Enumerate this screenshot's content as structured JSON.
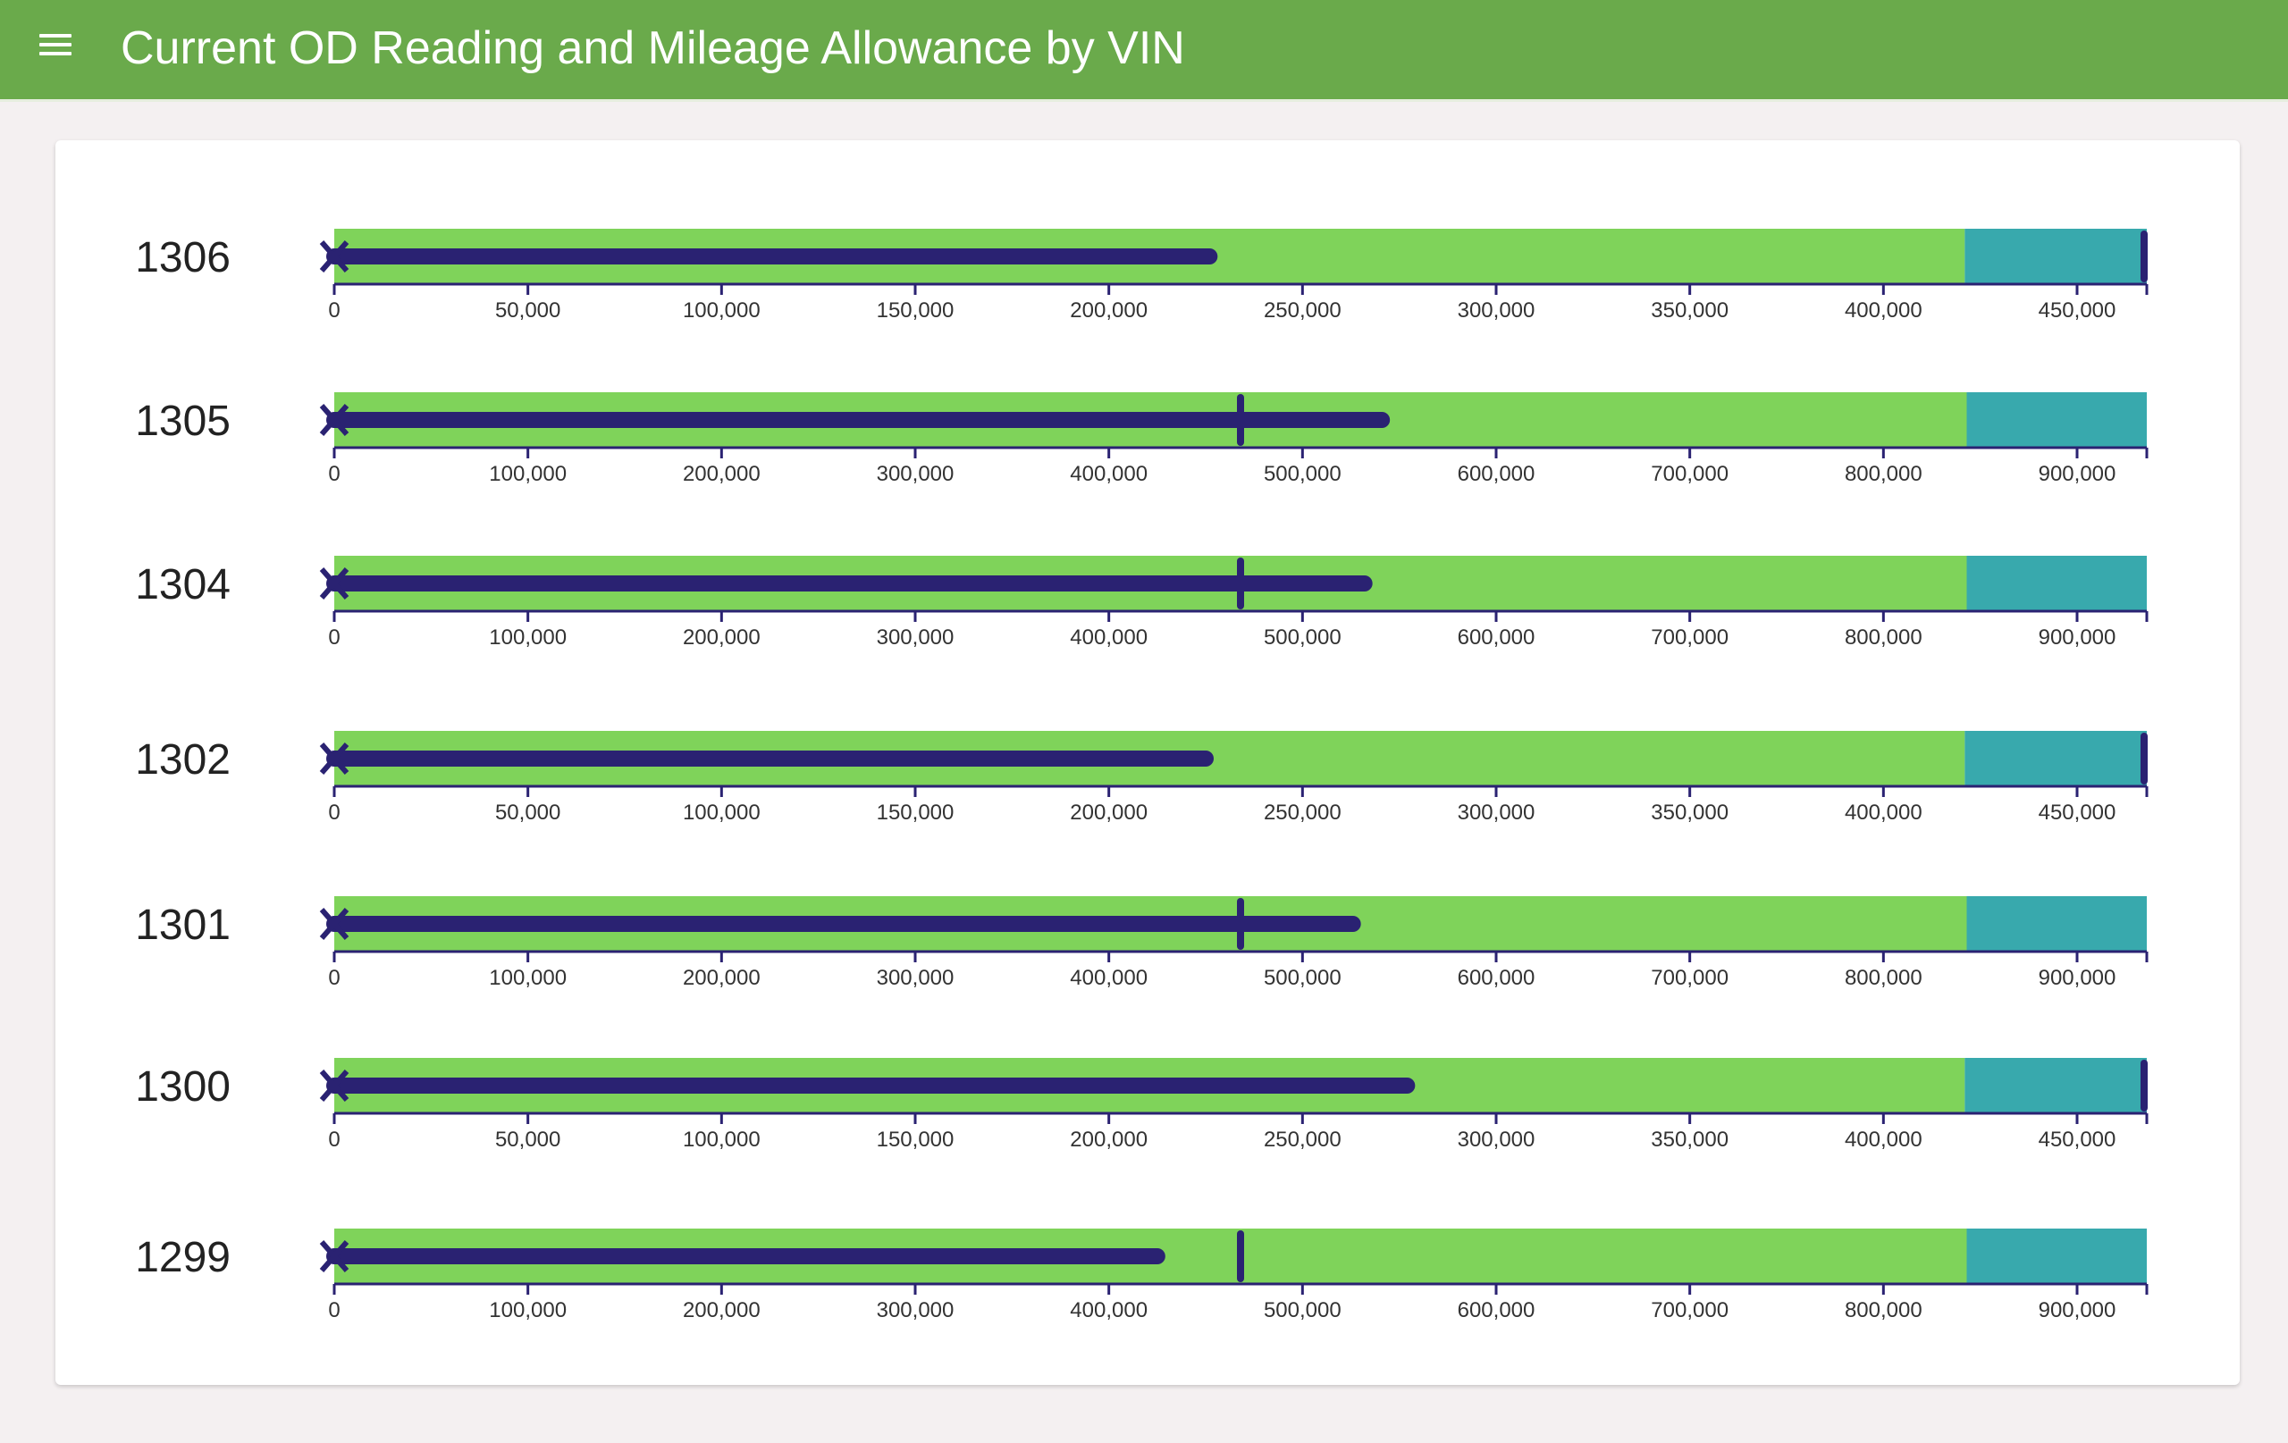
{
  "header": {
    "title": "Current OD Reading and Mileage Allowance by VIN",
    "menu_icon": "hamburger-menu-icon"
  },
  "colors": {
    "header": "#6aaa4b",
    "range_good": "#7fd35a",
    "range_high": "#38a9ad",
    "measure": "#2a2272",
    "background": "#f4f0f1"
  },
  "chart_data": {
    "type": "bullet",
    "title": "Current OD Reading and Mileage Allowance by VIN",
    "measure_label": "Current OD Reading",
    "target_label": "Mileage Allowance",
    "rows": [
      {
        "vin": "1306",
        "value": 226000,
        "target": 468000,
        "max": 468000,
        "range_split": 421000,
        "ticks": [
          0,
          50000,
          100000,
          150000,
          200000,
          250000,
          300000,
          350000,
          400000,
          450000
        ]
      },
      {
        "vin": "1305",
        "value": 541000,
        "target": 468000,
        "max": 936000,
        "range_split": 843000,
        "ticks": [
          0,
          100000,
          200000,
          300000,
          400000,
          500000,
          600000,
          700000,
          800000,
          900000
        ]
      },
      {
        "vin": "1304",
        "value": 532000,
        "target": 468000,
        "max": 936000,
        "range_split": 843000,
        "ticks": [
          0,
          100000,
          200000,
          300000,
          400000,
          500000,
          600000,
          700000,
          800000,
          900000
        ]
      },
      {
        "vin": "1302",
        "value": 225000,
        "target": 468000,
        "max": 468000,
        "range_split": 421000,
        "ticks": [
          0,
          50000,
          100000,
          150000,
          200000,
          250000,
          300000,
          350000,
          400000,
          450000
        ]
      },
      {
        "vin": "1301",
        "value": 526000,
        "target": 468000,
        "max": 936000,
        "range_split": 843000,
        "ticks": [
          0,
          100000,
          200000,
          300000,
          400000,
          500000,
          600000,
          700000,
          800000,
          900000
        ]
      },
      {
        "vin": "1300",
        "value": 277000,
        "target": 468000,
        "max": 468000,
        "range_split": 421000,
        "ticks": [
          0,
          50000,
          100000,
          150000,
          200000,
          250000,
          300000,
          350000,
          400000,
          450000
        ]
      },
      {
        "vin": "1299",
        "value": 425000,
        "target": 468000,
        "max": 936000,
        "range_split": 843000,
        "ticks": [
          0,
          100000,
          200000,
          300000,
          400000,
          500000,
          600000,
          700000,
          800000,
          900000
        ]
      }
    ]
  }
}
